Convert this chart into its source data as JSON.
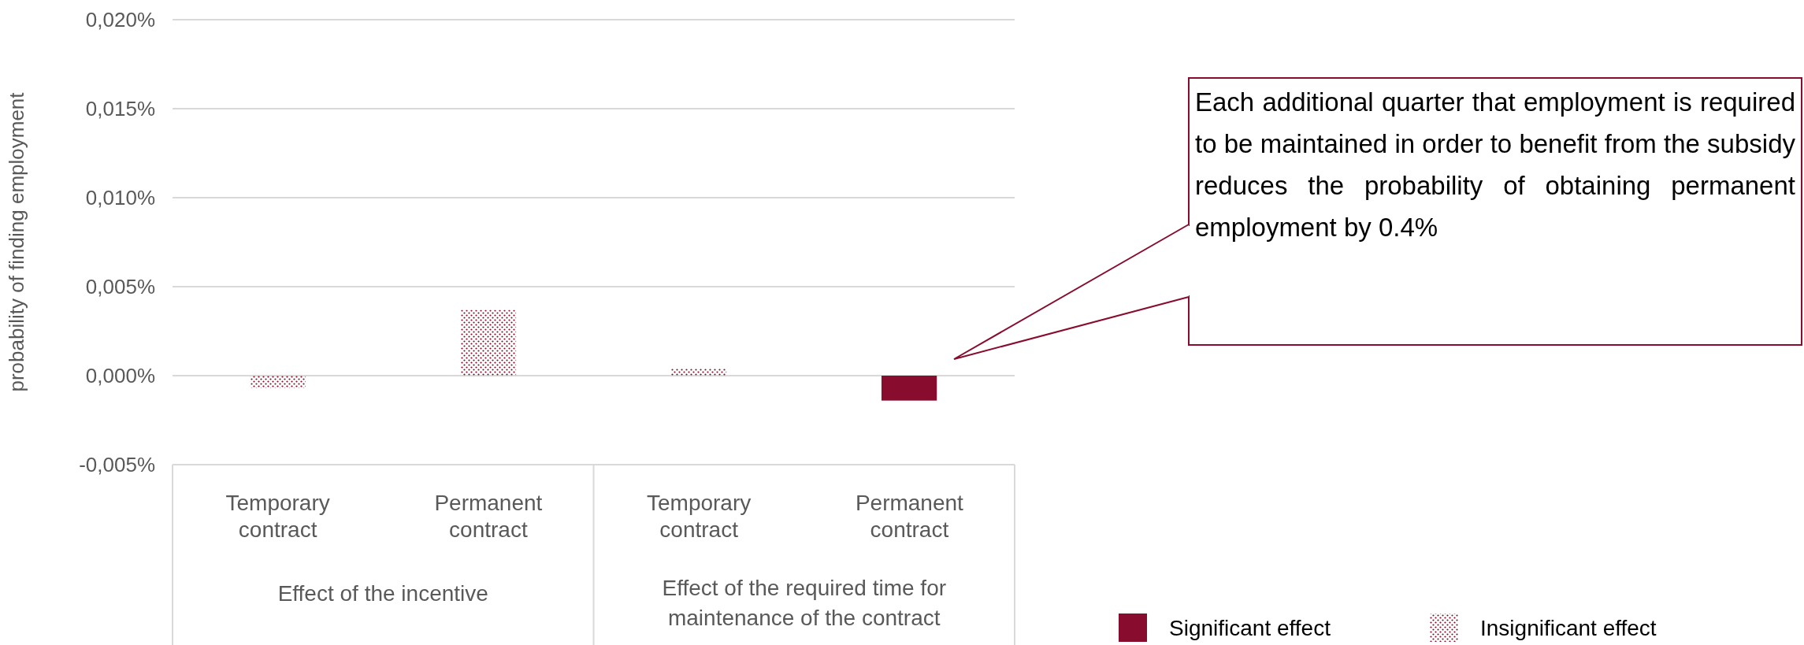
{
  "chart_data": {
    "type": "bar",
    "ylabel": "probability of finding employment",
    "categories": [
      "Temporary contract",
      "Permanent contract",
      "Temporary contract",
      "Permanent contract"
    ],
    "series": [
      {
        "name": "Significant effect",
        "color": "#880c2e",
        "values": [
          null,
          null,
          null,
          -0.0014
        ]
      },
      {
        "name": "Insignificant effect",
        "color": "#880c2e",
        "values": [
          -0.0007,
          0.0037,
          0.0004,
          null
        ]
      }
    ],
    "ylim": [
      -0.005,
      0.02
    ],
    "yticks": [
      {
        "value": -0.005,
        "label": "-0,005%"
      },
      {
        "value": 0,
        "label": "0,000%"
      },
      {
        "value": 0.005,
        "label": "0,005%"
      },
      {
        "value": 0.01,
        "label": "0,010%"
      },
      {
        "value": 0.015,
        "label": "0,015%"
      },
      {
        "value": 0.02,
        "label": "0,020%"
      }
    ],
    "grid": "y",
    "legend": "bottom right",
    "annotations": [
      "Effect of the incentive",
      "Effect of the required time for maintenance of the contract",
      "Each additional quarter that employment is required to be maintained in order to benefit from the subsidy reduces the probability of obtaining permanent employment by 0.4%"
    ]
  }
}
